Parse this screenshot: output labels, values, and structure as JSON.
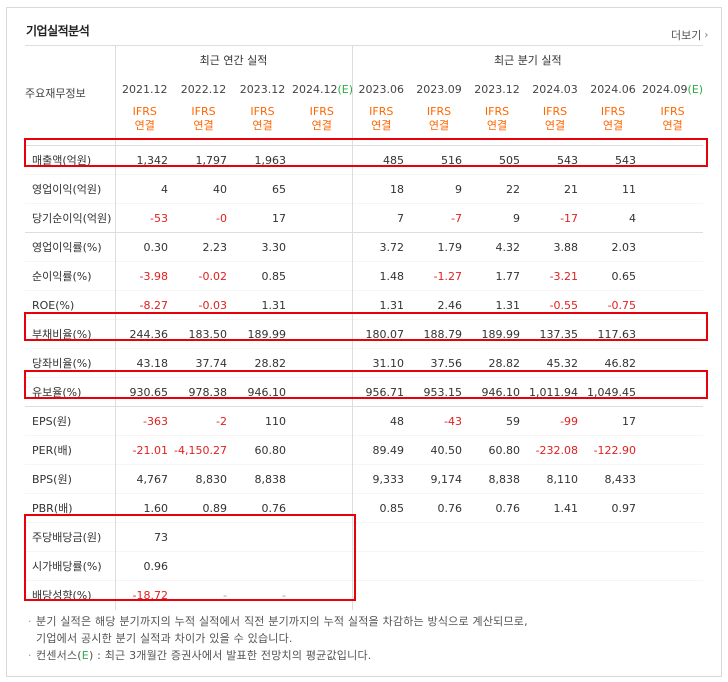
{
  "title": "기업실적분석",
  "more_label": "더보기",
  "group_annual": "최근 연간 실적",
  "group_quarter": "최근 분기 실적",
  "row_header": "주요재무정보",
  "periods": [
    "2021.12",
    "2022.12",
    "2023.12",
    "2024.12",
    "2023.06",
    "2023.09",
    "2023.12",
    "2024.03",
    "2024.06",
    "2024.09"
  ],
  "est_mark": "(E)",
  "ifrs_top": "IFRS",
  "ifrs_bottom": "연결",
  "rows": [
    {
      "label": "매출액(억원)",
      "values": [
        "1,342",
        "1,797",
        "1,963",
        "",
        "485",
        "516",
        "505",
        "543",
        "543",
        ""
      ]
    },
    {
      "label": "영업이익(억원)",
      "values": [
        "4",
        "40",
        "65",
        "",
        "18",
        "9",
        "22",
        "21",
        "11",
        ""
      ]
    },
    {
      "label": "당기순이익(억원)",
      "values": [
        "-53",
        "-0",
        "17",
        "",
        "7",
        "-7",
        "9",
        "-17",
        "4",
        ""
      ]
    },
    {
      "label": "영업이익률(%)",
      "values": [
        "0.30",
        "2.23",
        "3.30",
        "",
        "3.72",
        "1.79",
        "4.32",
        "3.88",
        "2.03",
        ""
      ]
    },
    {
      "label": "순이익률(%)",
      "values": [
        "-3.98",
        "-0.02",
        "0.85",
        "",
        "1.48",
        "-1.27",
        "1.77",
        "-3.21",
        "0.65",
        ""
      ]
    },
    {
      "label": "ROE(%)",
      "values": [
        "-8.27",
        "-0.03",
        "1.31",
        "",
        "1.31",
        "2.46",
        "1.31",
        "-0.55",
        "-0.75",
        ""
      ]
    },
    {
      "label": "부채비율(%)",
      "values": [
        "244.36",
        "183.50",
        "189.99",
        "",
        "180.07",
        "188.79",
        "189.99",
        "137.35",
        "117.63",
        ""
      ]
    },
    {
      "label": "당좌비율(%)",
      "values": [
        "43.18",
        "37.74",
        "28.82",
        "",
        "31.10",
        "37.56",
        "28.82",
        "45.32",
        "46.82",
        ""
      ]
    },
    {
      "label": "유보율(%)",
      "values": [
        "930.65",
        "978.38",
        "946.10",
        "",
        "956.71",
        "953.15",
        "946.10",
        "1,011.94",
        "1,049.45",
        ""
      ]
    },
    {
      "label": "EPS(원)",
      "values": [
        "-363",
        "-2",
        "110",
        "",
        "48",
        "-43",
        "59",
        "-99",
        "17",
        ""
      ]
    },
    {
      "label": "PER(배)",
      "values": [
        "-21.01",
        "-4,150.27",
        "60.80",
        "",
        "89.49",
        "40.50",
        "60.80",
        "-232.08",
        "-122.90",
        ""
      ]
    },
    {
      "label": "BPS(원)",
      "values": [
        "4,767",
        "8,830",
        "8,838",
        "",
        "9,333",
        "9,174",
        "8,838",
        "8,110",
        "8,433",
        ""
      ]
    },
    {
      "label": "PBR(배)",
      "values": [
        "1.60",
        "0.89",
        "0.76",
        "",
        "0.85",
        "0.76",
        "0.76",
        "1.41",
        "0.97",
        ""
      ]
    },
    {
      "label": "주당배당금(원)",
      "values": [
        "73",
        "",
        "",
        "",
        "",
        "",
        "",
        "",
        "",
        ""
      ]
    },
    {
      "label": "시가배당률(%)",
      "values": [
        "0.96",
        "",
        "",
        "",
        "",
        "",
        "",
        "",
        "",
        ""
      ]
    },
    {
      "label": "배당성향(%)",
      "values": [
        "-18.72",
        "-",
        "-",
        "",
        "",
        "",
        "",
        "",
        "",
        ""
      ]
    }
  ],
  "notes": {
    "line1": "분기 실적은 해당 분기까지의 누적 실적에서 직전 분기까지의 누적 실적을 차감하는 방식으로 계산되므로,",
    "line2": "기업에서 공시한 분기 실적과 차이가 있을 수 있습니다.",
    "line3_pre": "컨센서스(",
    "line3_e": "E",
    "line3_post": ") : 최근 3개월간 증권사에서 발표한 전망치의 평균값입니다."
  },
  "colors": {
    "highlight": "#e8000b",
    "negative": "#e02020",
    "ifrs": "#ff6600",
    "estimate": "#2eaa47"
  }
}
